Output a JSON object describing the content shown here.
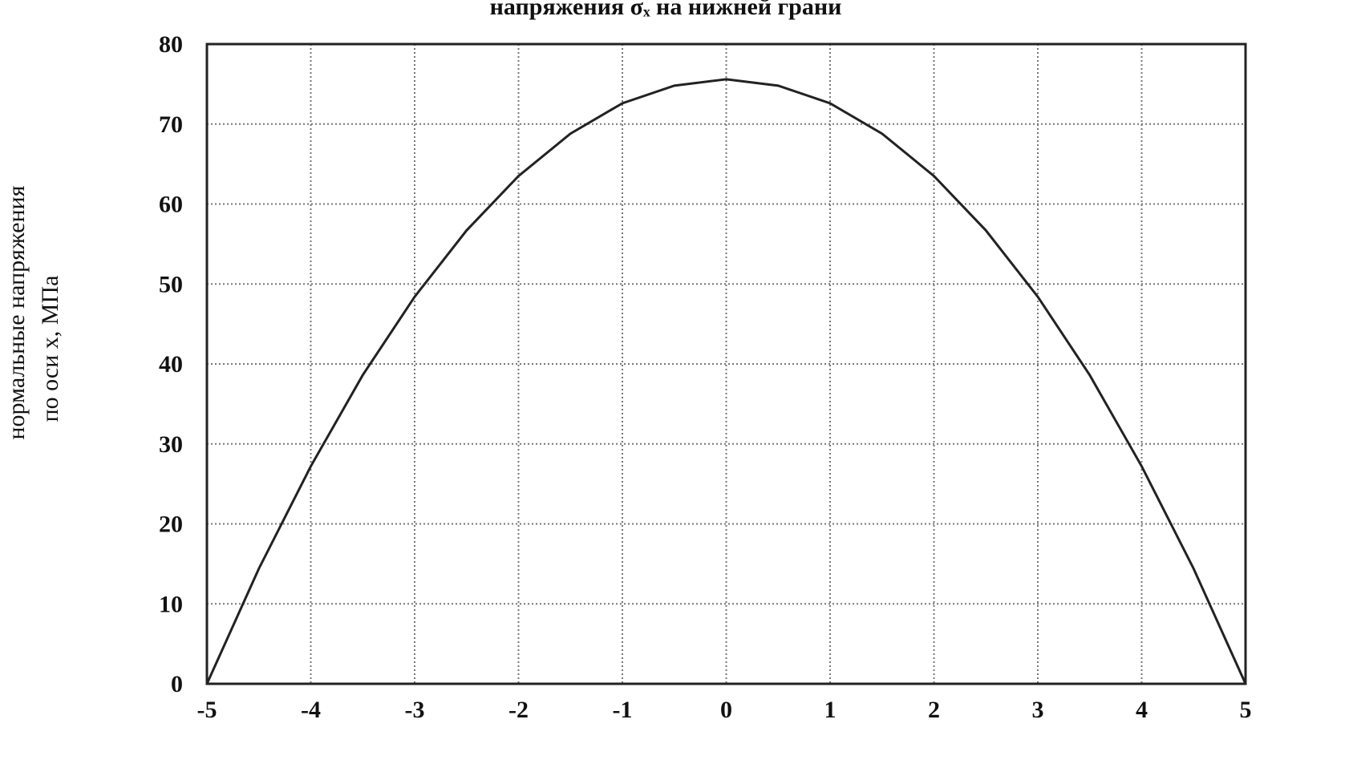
{
  "chart_data": {
    "type": "line",
    "title": "напряжения σₓ на нижней грани",
    "y_label": [
      "нормальные напряжения",
      "по оси x,  МПа"
    ],
    "x": [
      -5,
      -4.5,
      -4,
      -3.5,
      -3,
      -2.5,
      -2,
      -1.5,
      -1,
      -0.5,
      0,
      0.5,
      1,
      1.5,
      2,
      2.5,
      3,
      3.5,
      4,
      4.5,
      5
    ],
    "series": [
      {
        "name": "σₓ",
        "color": "#222222",
        "values": [
          0,
          14.4,
          27.2,
          38.6,
          48.4,
          56.7,
          63.5,
          68.8,
          72.6,
          74.8,
          75.6,
          74.8,
          72.6,
          68.8,
          63.5,
          56.7,
          48.4,
          38.6,
          27.2,
          14.4,
          0
        ]
      }
    ],
    "xlim": [
      -5,
      5
    ],
    "xticks": [
      -5,
      -4,
      -3,
      -2,
      -1,
      0,
      1,
      2,
      3,
      4,
      5
    ],
    "ylim": [
      0,
      80
    ],
    "yticks": [
      0,
      10,
      20,
      30,
      40,
      50,
      60,
      70,
      80
    ],
    "grid": true
  }
}
